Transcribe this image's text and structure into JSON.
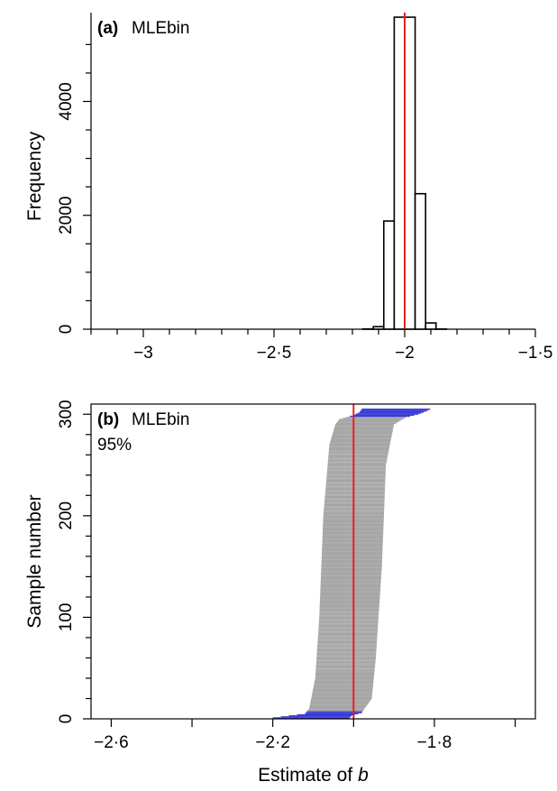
{
  "colors": {
    "true_value_line": "#e8201c",
    "ci_covering": "#a6a6a6",
    "ci_excluding": "#3b3bd9",
    "axis": "#000000"
  },
  "chart_data": [
    {
      "panel": "a",
      "type": "bar",
      "subtype": "histogram",
      "panel_label": "(a)",
      "panel_title": "MLEbin",
      "xlabel": "",
      "ylabel": "Frequency",
      "xlim": [
        -3.2,
        -1.5
      ],
      "ylim": [
        0,
        5500
      ],
      "x_ticks": [
        -3,
        -2.5,
        -2,
        -1.5
      ],
      "x_tick_labels": [
        "−3",
        "−2·5",
        "−2",
        "−1·5"
      ],
      "y_ticks": [
        0,
        2000,
        4000
      ],
      "y_tick_labels": [
        "0",
        "2000",
        "4000"
      ],
      "bin_width": 0.04,
      "bins": [
        {
          "left": -2.16,
          "right": -2.12,
          "count": 5
        },
        {
          "left": -2.12,
          "right": -2.08,
          "count": 45
        },
        {
          "left": -2.08,
          "right": -2.04,
          "count": 1900
        },
        {
          "left": -2.04,
          "right": -2.0,
          "count": 5480
        },
        {
          "left": -2.0,
          "right": -1.96,
          "count": 5480
        },
        {
          "left": -1.96,
          "right": -1.92,
          "count": 2380
        },
        {
          "left": -1.92,
          "right": -1.88,
          "count": 110
        },
        {
          "left": -1.88,
          "right": -1.84,
          "count": 3
        }
      ],
      "reference_line_x": -2,
      "grid": false
    },
    {
      "panel": "b",
      "type": "line",
      "subtype": "sorted confidence intervals",
      "panel_label": "(b)",
      "panel_title": "MLEbin",
      "panel_subtitle": "95%",
      "xlabel": "Estimate of",
      "xlabel_italic": "b",
      "ylabel": "Sample number",
      "xlim": [
        -2.65,
        -1.55
      ],
      "ylim": [
        0,
        310
      ],
      "x_ticks": [
        -2.6,
        -2.2,
        -1.8
      ],
      "x_tick_labels": [
        "−2·6",
        "−2·2",
        "−1·8"
      ],
      "x_minor_ticks": [
        -2.4,
        -2.0,
        -1.6
      ],
      "y_ticks": [
        0,
        100,
        200,
        300
      ],
      "y_tick_labels": [
        "0",
        "100",
        "200",
        "300"
      ],
      "n_samples": 305,
      "reference_line_x": -2,
      "lower_bound_profile": [
        [
          1,
          -2.2
        ],
        [
          3,
          -2.16
        ],
        [
          5,
          -2.12
        ],
        [
          10,
          -2.11
        ],
        [
          40,
          -2.095
        ],
        [
          100,
          -2.085
        ],
        [
          200,
          -2.075
        ],
        [
          270,
          -2.06
        ],
        [
          290,
          -2.045
        ],
        [
          295,
          -2.035
        ],
        [
          299,
          -2.0
        ],
        [
          302,
          -1.985
        ],
        [
          305,
          -1.98
        ]
      ],
      "upper_bound_profile": [
        [
          1,
          -2.01
        ],
        [
          3,
          -2.005
        ],
        [
          6,
          -1.98
        ],
        [
          20,
          -1.955
        ],
        [
          60,
          -1.945
        ],
        [
          150,
          -1.93
        ],
        [
          250,
          -1.92
        ],
        [
          290,
          -1.9
        ],
        [
          297,
          -1.87
        ],
        [
          300,
          -1.84
        ],
        [
          303,
          -1.82
        ],
        [
          305,
          -1.81
        ]
      ],
      "excluding_intervals": {
        "low_side": [
          1,
          7
        ],
        "high_side": [
          298,
          305
        ]
      },
      "grid": false
    }
  ]
}
